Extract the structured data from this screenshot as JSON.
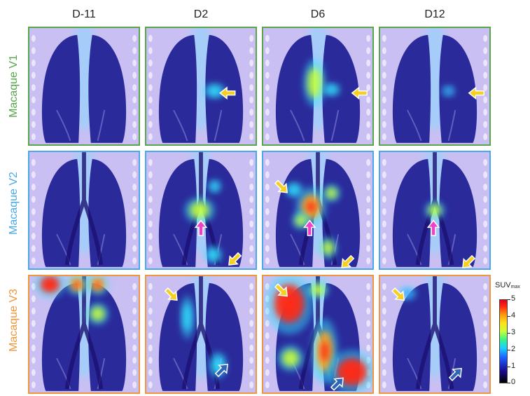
{
  "columns": [
    "D-11",
    "D2",
    "D6",
    "D12"
  ],
  "rows": [
    {
      "label": "Macaque V1",
      "color": "#57a64a"
    },
    {
      "label": "Macaque V2",
      "color": "#4aa8e6"
    },
    {
      "label": "Macaque V3",
      "color": "#f0963c"
    }
  ],
  "colorbar": {
    "title": "SUV",
    "title_sub": "max",
    "ticks": [
      "5",
      "4",
      "3",
      "2",
      "1",
      "0"
    ]
  },
  "arrow_colors": {
    "yellow": "#f5d020",
    "magenta": "#f040c8",
    "blue": "#2f66b8"
  }
}
